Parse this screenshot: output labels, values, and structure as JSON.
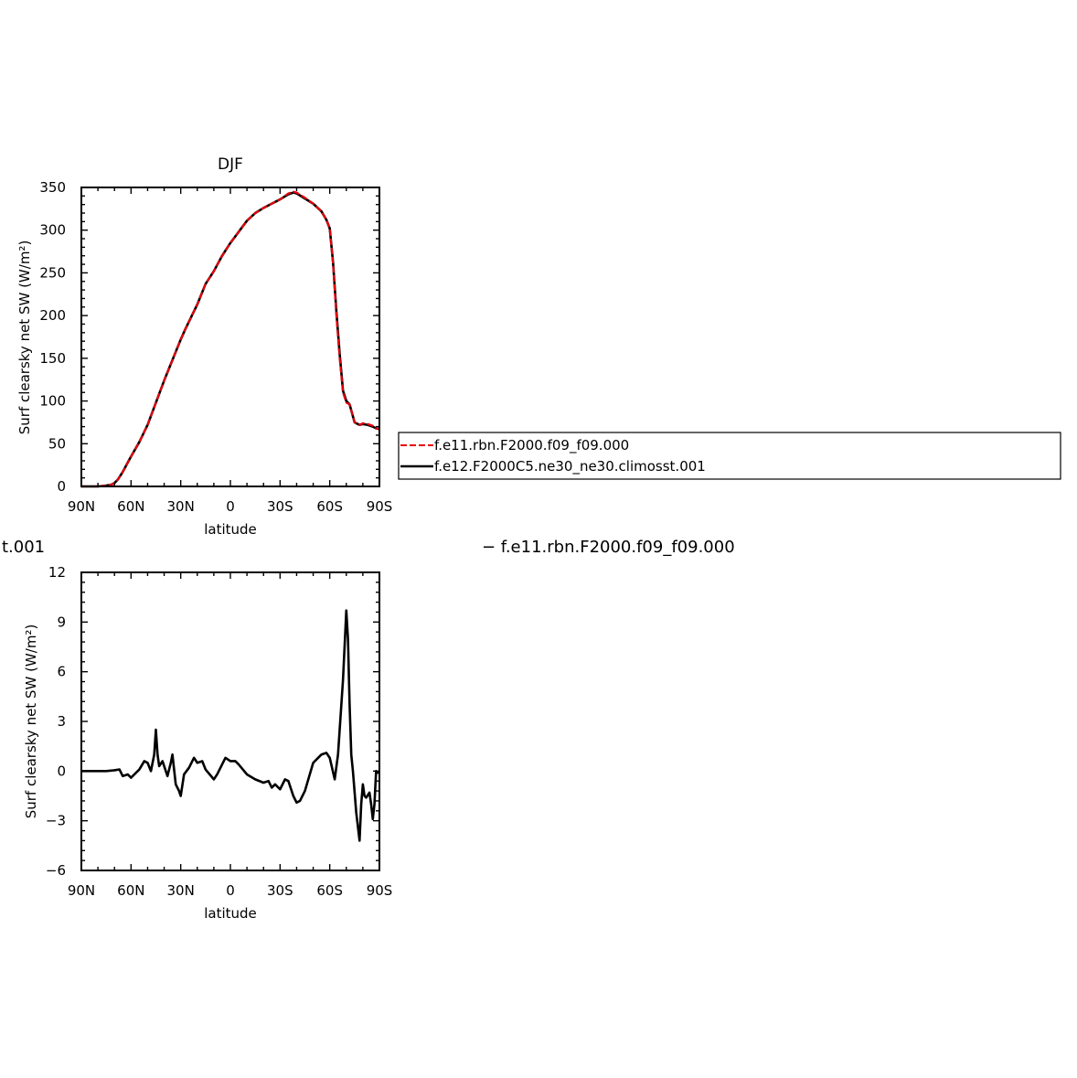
{
  "chart_data": [
    {
      "type": "line",
      "title": "DJF",
      "xlabel": "latitude",
      "ylabel": "Surf clearsky net SW (W/m²)",
      "xlim": [
        90,
        -90
      ],
      "ylim": [
        0,
        350
      ],
      "x_ticks": [
        90,
        60,
        30,
        0,
        -30,
        -60,
        -90
      ],
      "x_tick_labels": [
        "90N",
        "60N",
        "30N",
        "0",
        "30S",
        "60S",
        "90S"
      ],
      "y_ticks": [
        0,
        50,
        100,
        150,
        200,
        250,
        300,
        350
      ],
      "y_tick_labels": [
        "0",
        "50",
        "100",
        "150",
        "200",
        "250",
        "300",
        "350"
      ],
      "legend": {
        "placement": "right",
        "entries": [
          "f.e11.rbn.F2000.f09_f09.000",
          "f.e12.F2000C5.ne30_ne30.climosst.001"
        ]
      },
      "series": [
        {
          "name": "f.e11.rbn.F2000.f09_f09.000",
          "color": "#e8000b",
          "dash": "dashed",
          "x": [
            90,
            85,
            80,
            75,
            72,
            70,
            68,
            65,
            62,
            60,
            55,
            50,
            45,
            40,
            35,
            30,
            27,
            25,
            20,
            15,
            10,
            5,
            0,
            -5,
            -10,
            -15,
            -20,
            -25,
            -30,
            -35,
            -38,
            -40,
            -45,
            -50,
            -55,
            -58,
            -60,
            -62,
            -64,
            -66,
            -68,
            -70,
            -72,
            -75,
            -78,
            -80,
            -83,
            -86,
            -88,
            -90
          ],
          "y": [
            0,
            0,
            0,
            1,
            2,
            4,
            8,
            17,
            28,
            35,
            52,
            72,
            98,
            124,
            148,
            172,
            185,
            193,
            213,
            237,
            252,
            270,
            285,
            298,
            311,
            320,
            326,
            331,
            336,
            343,
            345,
            344,
            338,
            331,
            322,
            312,
            302,
            260,
            200,
            150,
            110,
            98,
            96,
            75,
            72,
            74,
            73,
            71,
            68,
            67
          ]
        },
        {
          "name": "f.e12.F2000C5.ne30_ne30.climosst.001",
          "color": "#000000",
          "dash": "solid",
          "x": [
            90,
            85,
            80,
            75,
            72,
            70,
            68,
            65,
            62,
            60,
            55,
            50,
            45,
            40,
            35,
            30,
            27,
            25,
            20,
            15,
            10,
            5,
            0,
            -5,
            -10,
            -15,
            -20,
            -25,
            -30,
            -35,
            -38,
            -40,
            -45,
            -50,
            -55,
            -58,
            -60,
            -62,
            -64,
            -66,
            -68,
            -70,
            -72,
            -75,
            -78,
            -80,
            -83,
            -86,
            -88,
            -90
          ],
          "y": [
            0,
            0,
            0,
            1,
            2,
            4,
            8,
            17,
            28,
            35,
            52,
            72,
            98,
            124,
            148,
            172,
            185,
            193,
            213,
            237,
            252,
            270,
            285,
            298,
            311,
            320,
            326,
            331,
            336,
            342,
            344,
            343,
            337,
            331,
            322,
            312,
            302,
            262,
            205,
            155,
            112,
            100,
            96,
            75,
            72,
            73,
            72,
            70,
            68,
            67
          ]
        }
      ]
    },
    {
      "type": "line",
      "title": "",
      "title_fragment": "t.001",
      "title_right": "− f.e11.rbn.F2000.f09_f09.000",
      "xlabel": "latitude",
      "ylabel": "Surf clearsky net SW (W/m²)",
      "xlim": [
        90,
        -90
      ],
      "ylim": [
        -6,
        12
      ],
      "x_ticks": [
        90,
        60,
        30,
        0,
        -30,
        -60,
        -90
      ],
      "x_tick_labels": [
        "90N",
        "60N",
        "30N",
        "0",
        "30S",
        "60S",
        "90S"
      ],
      "y_ticks": [
        -6,
        -3,
        0,
        3,
        6,
        9,
        12
      ],
      "y_tick_labels": [
        "−6",
        "−3",
        "0",
        "3",
        "6",
        "9",
        "12"
      ],
      "series": [
        {
          "color": "#000000",
          "dash": "solid",
          "x": [
            90,
            85,
            80,
            75,
            70,
            67,
            65,
            62,
            60,
            58,
            55,
            52,
            50,
            48,
            46,
            45,
            44,
            43,
            41,
            40,
            38,
            36,
            35,
            33,
            31,
            30,
            28,
            25,
            22,
            20,
            17,
            15,
            10,
            8,
            5,
            3,
            0,
            -3,
            -5,
            -10,
            -15,
            -20,
            -23,
            -25,
            -27,
            -30,
            -33,
            -35,
            -38,
            -40,
            -42,
            -45,
            -50,
            -55,
            -58,
            -60,
            -63,
            -65,
            -66,
            -68,
            -70,
            -71,
            -72,
            -73,
            -74,
            -76,
            -78,
            -79,
            -80,
            -81,
            -82,
            -84,
            -85,
            -86,
            -87,
            -88,
            -89,
            -90
          ],
          "y": [
            0,
            0,
            0,
            0,
            0.05,
            0.1,
            -0.3,
            -0.2,
            -0.4,
            -0.2,
            0.1,
            0.6,
            0.5,
            0.0,
            1.0,
            2.5,
            1.0,
            0.3,
            0.6,
            0.3,
            -0.3,
            0.5,
            1.0,
            -0.8,
            -1.2,
            -1.5,
            -0.2,
            0.2,
            0.8,
            0.5,
            0.6,
            0.1,
            -0.5,
            -0.2,
            0.4,
            0.8,
            0.6,
            0.6,
            0.4,
            -0.2,
            -0.5,
            -0.7,
            -0.6,
            -1.0,
            -0.8,
            -1.1,
            -0.5,
            -0.6,
            -1.5,
            -1.9,
            -1.8,
            -1.2,
            0.5,
            1.0,
            1.1,
            0.8,
            -0.5,
            1.0,
            2.5,
            5.5,
            9.7,
            8.0,
            4.0,
            1.0,
            0.0,
            -2.5,
            -4.2,
            -2.0,
            -0.8,
            -1.5,
            -1.6,
            -1.3,
            -2.0,
            -2.9,
            -2.0,
            0.0,
            -0.1,
            0.0
          ]
        }
      ]
    }
  ]
}
